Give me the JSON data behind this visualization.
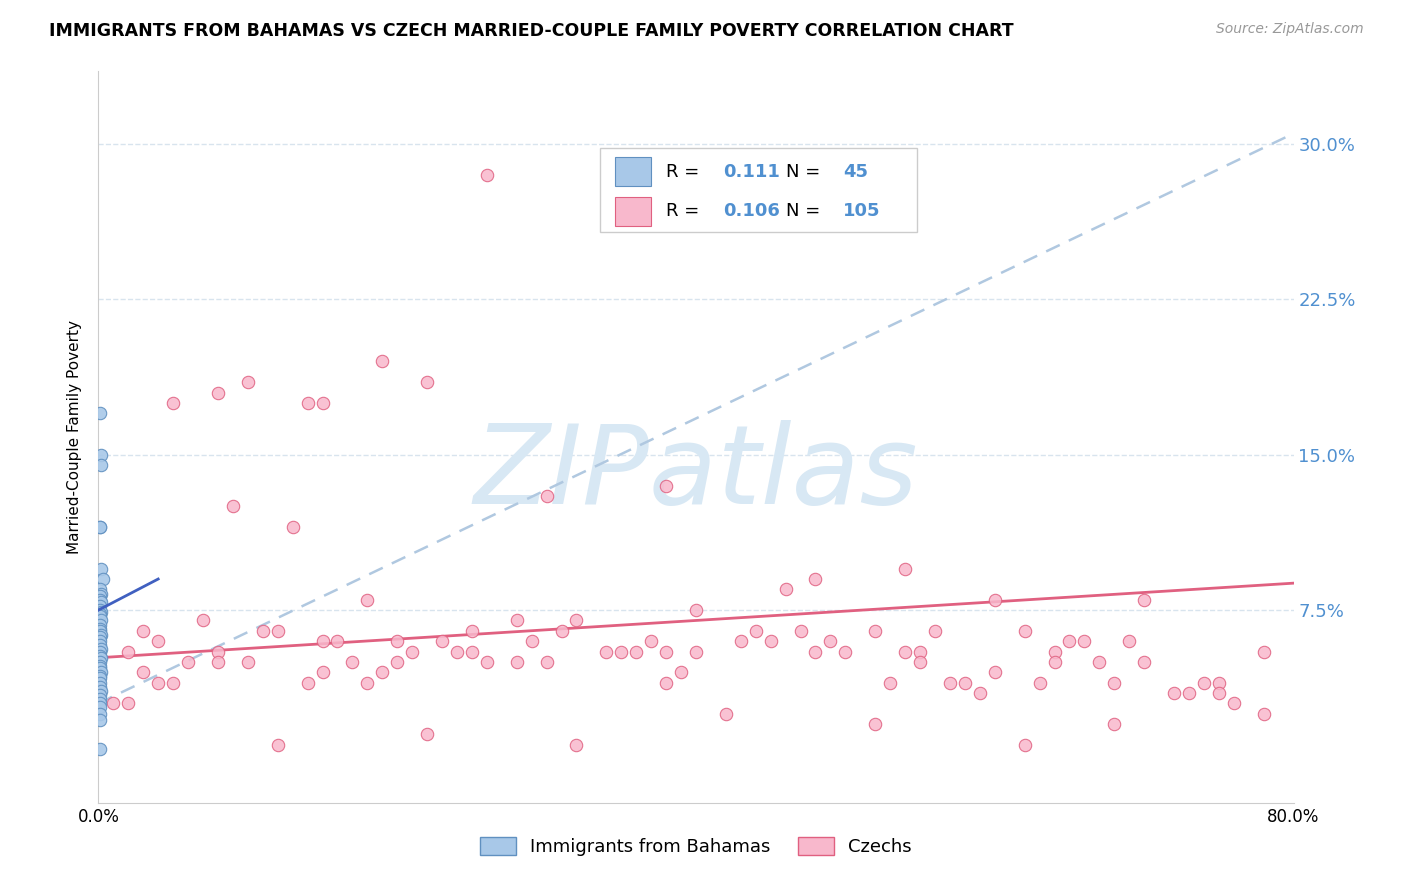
{
  "title": "IMMIGRANTS FROM BAHAMAS VS CZECH MARRIED-COUPLE FAMILY POVERTY CORRELATION CHART",
  "source": "Source: ZipAtlas.com",
  "ylabel": "Married-Couple Family Poverty",
  "xmin": 0.0,
  "xmax": 0.8,
  "ymin": -0.018,
  "ymax": 0.335,
  "legend_R1": "0.111",
  "legend_N1": "45",
  "legend_R2": "0.106",
  "legend_N2": "105",
  "legend_label1": "Immigrants from Bahamas",
  "legend_label2": "Czechs",
  "color_blue_fill": "#a8c8e8",
  "color_blue_edge": "#6090c0",
  "color_pink_fill": "#f8b8cc",
  "color_pink_edge": "#e06080",
  "color_trend_blue_dash": "#b0c8e0",
  "color_trend_blue_solid": "#4060c0",
  "color_trend_pink": "#e06080",
  "color_ytick": "#5090d0",
  "watermark_color": "#d8e8f4",
  "grid_color": "#d8e4ee",
  "background_color": "#ffffff",
  "blue_scatter_x": [
    0.001,
    0.002,
    0.002,
    0.001,
    0.001,
    0.002,
    0.003,
    0.001,
    0.002,
    0.001,
    0.001,
    0.002,
    0.001,
    0.001,
    0.002,
    0.001,
    0.001,
    0.002,
    0.001,
    0.001,
    0.001,
    0.002,
    0.001,
    0.001,
    0.001,
    0.002,
    0.001,
    0.001,
    0.002,
    0.001,
    0.001,
    0.001,
    0.002,
    0.001,
    0.001,
    0.001,
    0.001,
    0.002,
    0.001,
    0.001,
    0.001,
    0.001,
    0.001,
    0.001,
    0.001
  ],
  "blue_scatter_y": [
    0.17,
    0.15,
    0.145,
    0.115,
    0.115,
    0.095,
    0.09,
    0.085,
    0.083,
    0.082,
    0.08,
    0.079,
    0.077,
    0.075,
    0.074,
    0.073,
    0.072,
    0.07,
    0.068,
    0.066,
    0.065,
    0.063,
    0.062,
    0.06,
    0.058,
    0.056,
    0.055,
    0.053,
    0.052,
    0.05,
    0.048,
    0.047,
    0.045,
    0.043,
    0.042,
    0.04,
    0.038,
    0.036,
    0.034,
    0.032,
    0.03,
    0.028,
    0.025,
    0.022,
    0.008
  ],
  "pink_scatter_x": [
    0.26,
    0.08,
    0.15,
    0.19,
    0.1,
    0.14,
    0.22,
    0.3,
    0.38,
    0.48,
    0.54,
    0.7,
    0.62,
    0.05,
    0.09,
    0.13,
    0.18,
    0.25,
    0.32,
    0.4,
    0.46,
    0.52,
    0.6,
    0.68,
    0.74,
    0.78,
    0.03,
    0.07,
    0.12,
    0.17,
    0.23,
    0.28,
    0.34,
    0.44,
    0.54,
    0.64,
    0.02,
    0.06,
    0.11,
    0.15,
    0.21,
    0.26,
    0.31,
    0.37,
    0.43,
    0.49,
    0.57,
    0.63,
    0.69,
    0.75,
    0.08,
    0.19,
    0.29,
    0.39,
    0.53,
    0.59,
    0.67,
    0.73,
    0.04,
    0.14,
    0.24,
    0.36,
    0.47,
    0.56,
    0.66,
    0.76,
    0.02,
    0.1,
    0.2,
    0.3,
    0.4,
    0.5,
    0.6,
    0.7,
    0.01,
    0.05,
    0.15,
    0.25,
    0.35,
    0.45,
    0.55,
    0.65,
    0.75,
    0.03,
    0.08,
    0.18,
    0.28,
    0.38,
    0.48,
    0.58,
    0.68,
    0.78,
    0.12,
    0.22,
    0.32,
    0.42,
    0.52,
    0.62,
    0.04,
    0.16,
    0.2,
    0.38,
    0.55,
    0.72,
    0.64
  ],
  "pink_scatter_y": [
    0.285,
    0.18,
    0.175,
    0.195,
    0.185,
    0.175,
    0.185,
    0.13,
    0.135,
    0.09,
    0.095,
    0.08,
    0.065,
    0.175,
    0.125,
    0.115,
    0.08,
    0.065,
    0.07,
    0.075,
    0.085,
    0.065,
    0.08,
    0.04,
    0.04,
    0.055,
    0.065,
    0.07,
    0.065,
    0.05,
    0.06,
    0.07,
    0.055,
    0.065,
    0.055,
    0.055,
    0.055,
    0.05,
    0.065,
    0.06,
    0.055,
    0.05,
    0.065,
    0.06,
    0.06,
    0.06,
    0.04,
    0.04,
    0.06,
    0.04,
    0.055,
    0.045,
    0.06,
    0.045,
    0.04,
    0.035,
    0.05,
    0.035,
    0.04,
    0.04,
    0.055,
    0.055,
    0.065,
    0.065,
    0.06,
    0.03,
    0.03,
    0.05,
    0.05,
    0.05,
    0.055,
    0.055,
    0.045,
    0.05,
    0.03,
    0.04,
    0.045,
    0.055,
    0.055,
    0.06,
    0.055,
    0.06,
    0.035,
    0.045,
    0.05,
    0.04,
    0.05,
    0.04,
    0.055,
    0.04,
    0.02,
    0.025,
    0.01,
    0.015,
    0.01,
    0.025,
    0.02,
    0.01,
    0.06,
    0.06,
    0.06,
    0.055,
    0.05,
    0.035,
    0.05
  ],
  "blue_dash_trend_x": [
    0.0,
    0.8
  ],
  "blue_dash_trend_y": [
    0.03,
    0.305
  ],
  "blue_solid_trend_x": [
    0.0,
    0.04
  ],
  "blue_solid_trend_y": [
    0.075,
    0.09
  ],
  "pink_trend_x": [
    0.0,
    0.8
  ],
  "pink_trend_y": [
    0.052,
    0.088
  ],
  "ytick_vals": [
    0.075,
    0.15,
    0.225,
    0.3
  ],
  "ytick_labels": [
    "7.5%",
    "15.0%",
    "22.5%",
    "30.0%"
  ]
}
